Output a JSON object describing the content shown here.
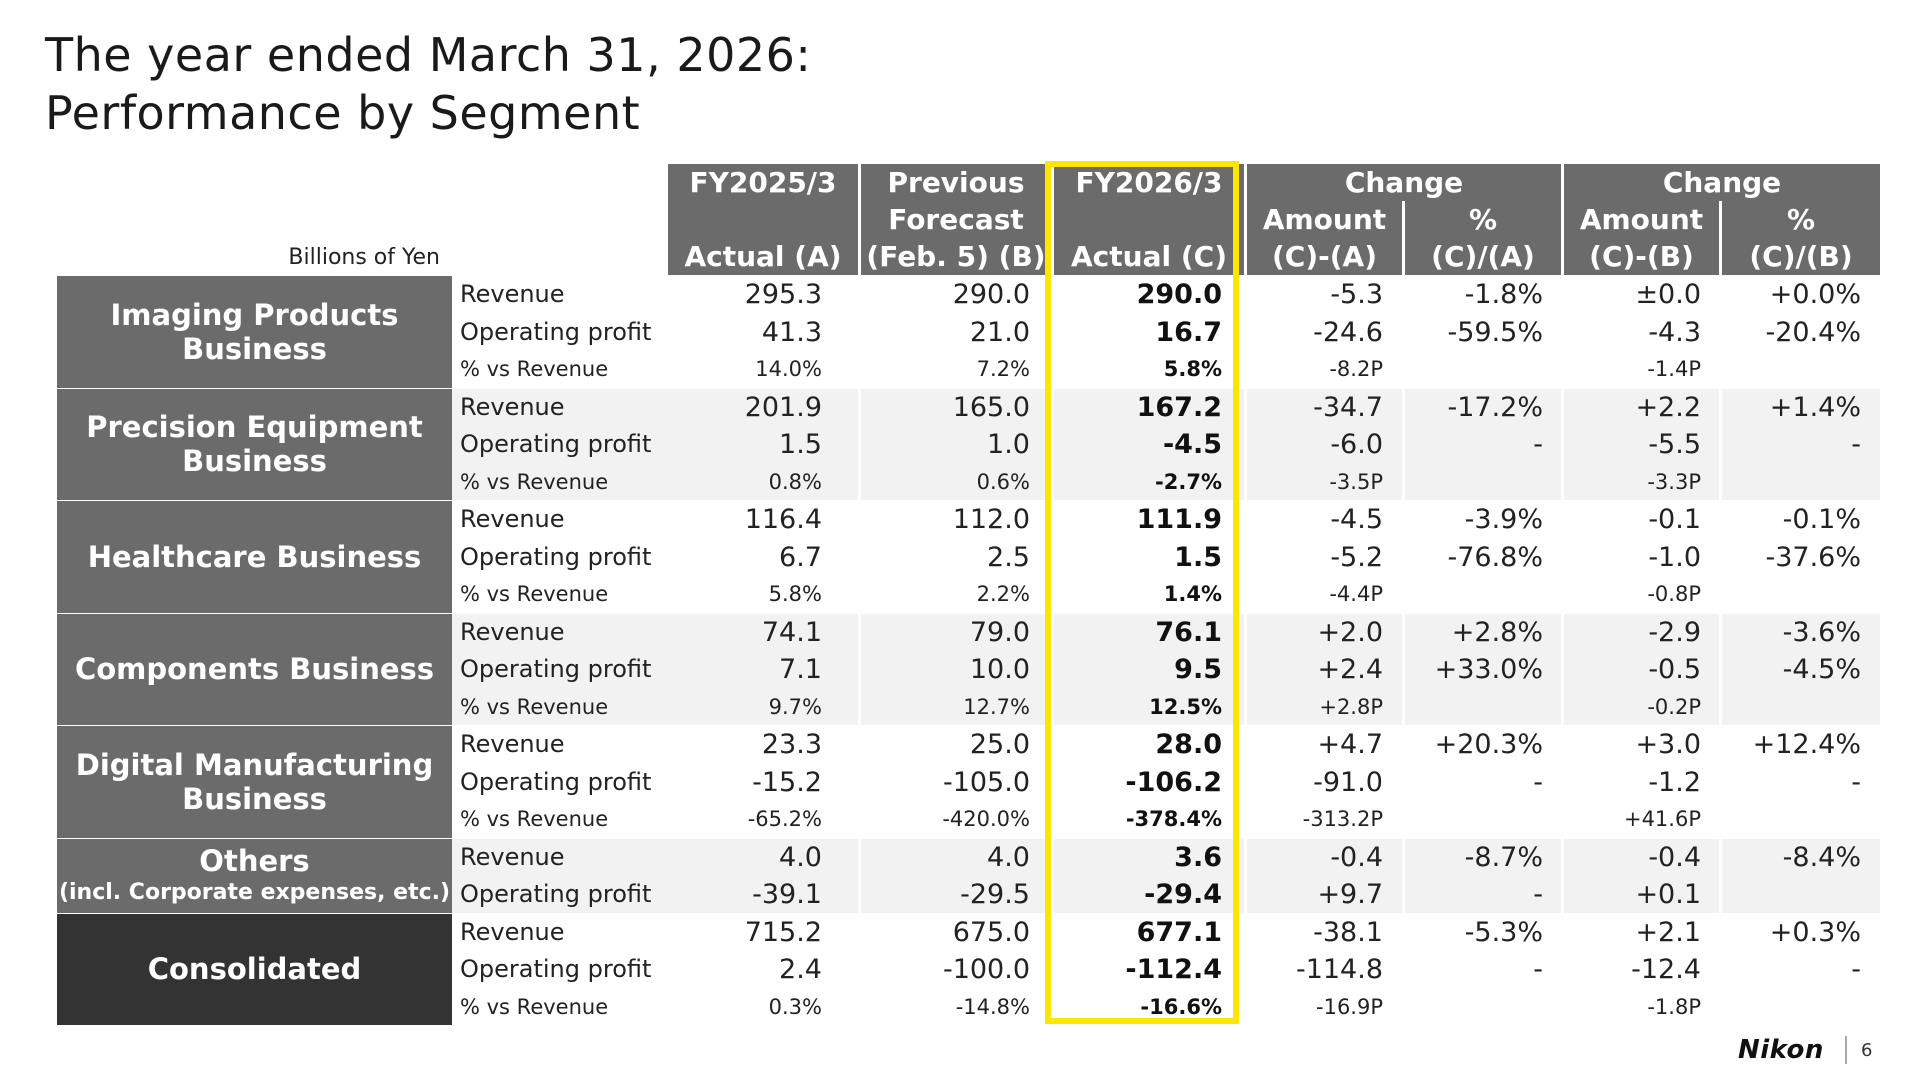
{
  "title": {
    "line1": "The year ended March 31, 2026:",
    "line2": "Performance by Segment"
  },
  "units": "Billions of Yen",
  "headers": {
    "col_a": {
      "line1": "FY2025/3",
      "line3": "Actual (A)"
    },
    "col_b": {
      "line1": "Previous",
      "line2": "Forecast",
      "line3": "(Feb. 5) (B)"
    },
    "col_c": {
      "line1": "FY2026/3",
      "line3": "Actual (C)"
    },
    "change1": {
      "title": "Change",
      "amount": "Amount",
      "amount_formula": "(C)-(A)",
      "pct": "%",
      "pct_formula": "(C)/(A)"
    },
    "change2": {
      "title": "Change",
      "amount": "Amount",
      "amount_formula": "(C)-(B)",
      "pct": "%",
      "pct_formula": "(C)/(B)"
    }
  },
  "segments": [
    {
      "name": "Imaging Products Business",
      "name2": "",
      "sub": "",
      "rows": [
        {
          "label": "Revenue",
          "a": "295.3",
          "b": "290.0",
          "c": "290.0",
          "d1": "-5.3",
          "p1": "-1.8%",
          "d2": "±0.0",
          "p2": "+0.0%"
        },
        {
          "label": "Operating profit",
          "a": "41.3",
          "b": "21.0",
          "c": "16.7",
          "d1": "-24.6",
          "p1": "-59.5%",
          "d2": "-4.3",
          "p2": "-20.4%"
        },
        {
          "label": "% vs Revenue",
          "a": "14.0%",
          "b": "7.2%",
          "c": "5.8%",
          "d1": "-8.2P",
          "p1": "",
          "d2": "-1.4P",
          "p2": ""
        }
      ]
    },
    {
      "name": "Precision Equipment",
      "name2": "Business",
      "sub": "",
      "rows": [
        {
          "label": "Revenue",
          "a": "201.9",
          "b": "165.0",
          "c": "167.2",
          "d1": "-34.7",
          "p1": "-17.2%",
          "d2": "+2.2",
          "p2": "+1.4%"
        },
        {
          "label": "Operating profit",
          "a": "1.5",
          "b": "1.0",
          "c": "-4.5",
          "d1": "-6.0",
          "p1": "-",
          "d2": "-5.5",
          "p2": "-"
        },
        {
          "label": "% vs Revenue",
          "a": "0.8%",
          "b": "0.6%",
          "c": "-2.7%",
          "d1": "-3.5P",
          "p1": "",
          "d2": "-3.3P",
          "p2": ""
        }
      ]
    },
    {
      "name": "Healthcare Business",
      "name2": "",
      "sub": "",
      "rows": [
        {
          "label": "Revenue",
          "a": "116.4",
          "b": "112.0",
          "c": "111.9",
          "d1": "-4.5",
          "p1": "-3.9%",
          "d2": "-0.1",
          "p2": "-0.1%"
        },
        {
          "label": "Operating profit",
          "a": "6.7",
          "b": "2.5",
          "c": "1.5",
          "d1": "-5.2",
          "p1": "-76.8%",
          "d2": "-1.0",
          "p2": "-37.6%"
        },
        {
          "label": "% vs Revenue",
          "a": "5.8%",
          "b": "2.2%",
          "c": "1.4%",
          "d1": "-4.4P",
          "p1": "",
          "d2": "-0.8P",
          "p2": ""
        }
      ]
    },
    {
      "name": "Components Business",
      "name2": "",
      "sub": "",
      "rows": [
        {
          "label": "Revenue",
          "a": "74.1",
          "b": "79.0",
          "c": "76.1",
          "d1": "+2.0",
          "p1": "+2.8%",
          "d2": "-2.9",
          "p2": "-3.6%"
        },
        {
          "label": "Operating profit",
          "a": "7.1",
          "b": "10.0",
          "c": "9.5",
          "d1": "+2.4",
          "p1": "+33.0%",
          "d2": "-0.5",
          "p2": "-4.5%"
        },
        {
          "label": "% vs Revenue",
          "a": "9.7%",
          "b": "12.7%",
          "c": "12.5%",
          "d1": "+2.8P",
          "p1": "",
          "d2": "-0.2P",
          "p2": ""
        }
      ]
    },
    {
      "name": "Digital Manufacturing",
      "name2": "Business",
      "sub": "",
      "rows": [
        {
          "label": "Revenue",
          "a": "23.3",
          "b": "25.0",
          "c": "28.0",
          "d1": "+4.7",
          "p1": "+20.3%",
          "d2": "+3.0",
          "p2": "+12.4%"
        },
        {
          "label": "Operating profit",
          "a": "-15.2",
          "b": "-105.0",
          "c": "-106.2",
          "d1": "-91.0",
          "p1": "-",
          "d2": "-1.2",
          "p2": "-"
        },
        {
          "label": "% vs Revenue",
          "a": "-65.2%",
          "b": "-420.0%",
          "c": "-378.4%",
          "d1": "-313.2P",
          "p1": "",
          "d2": "+41.6P",
          "p2": ""
        }
      ]
    },
    {
      "name": "Others",
      "name2": "",
      "sub": "(incl. Corporate  expenses, etc.)",
      "rows": [
        {
          "label": "Revenue",
          "a": "4.0",
          "b": "4.0",
          "c": "3.6",
          "d1": "-0.4",
          "p1": "-8.7%",
          "d2": "-0.4",
          "p2": "-8.4%"
        },
        {
          "label": "Operating profit",
          "a": "-39.1",
          "b": "-29.5",
          "c": "-29.4",
          "d1": "+9.7",
          "p1": "-",
          "d2": "+0.1",
          "p2": ""
        }
      ]
    },
    {
      "name": "Consolidated",
      "name2": "",
      "sub": "",
      "rows": [
        {
          "label": "Revenue",
          "a": "715.2",
          "b": "675.0",
          "c": "677.1",
          "d1": "-38.1",
          "p1": "-5.3%",
          "d2": "+2.1",
          "p2": "+0.3%"
        },
        {
          "label": "Operating profit",
          "a": "2.4",
          "b": "-100.0",
          "c": "-112.4",
          "d1": "-114.8",
          "p1": "-",
          "d2": "-12.4",
          "p2": "-"
        },
        {
          "label": "% vs Revenue",
          "a": "0.3%",
          "b": "-14.8%",
          "c": "-16.6%",
          "d1": "-16.9P",
          "p1": "",
          "d2": "-1.8P",
          "p2": ""
        }
      ]
    }
  ],
  "footer": {
    "logo": "Nikon",
    "page_number": "6"
  }
}
